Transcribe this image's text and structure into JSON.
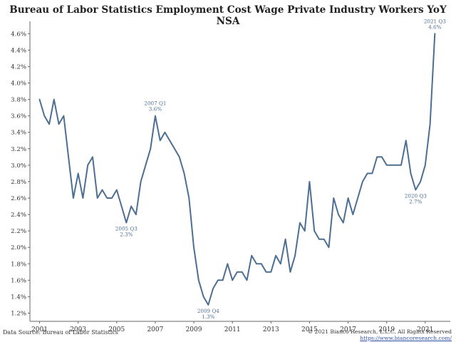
{
  "chart_data": {
    "type": "line",
    "title": "Bureau of Labor Statistics Employment Cost Wage Private Industry Workers YoY NSA",
    "xlabel": "",
    "ylabel": "",
    "x_range": [
      2000.5,
      2022.3
    ],
    "ylim": [
      1.1,
      4.75
    ],
    "y_ticks": [
      1.2,
      1.4,
      1.6,
      1.8,
      2.0,
      2.2,
      2.4,
      2.6,
      2.8,
      3.0,
      3.2,
      3.4,
      3.6,
      3.8,
      4.0,
      4.2,
      4.4,
      4.6
    ],
    "y_tick_labels": [
      "1.2%",
      "1.4%",
      "1.6%",
      "1.8%",
      "2.0%",
      "2.2%",
      "2.4%",
      "2.6%",
      "2.8%",
      "3.0%",
      "3.2%",
      "3.4%",
      "3.6%",
      "3.8%",
      "4.0%",
      "4.2%",
      "4.4%",
      "4.6%"
    ],
    "x_ticks": [
      2001,
      2003,
      2005,
      2007,
      2009,
      2011,
      2013,
      2015,
      2017,
      2019,
      2021
    ],
    "x_tick_labels": [
      "2001",
      "2003",
      "2005",
      "2007",
      "2009",
      "2011",
      "2013",
      "2015",
      "2017",
      "2019",
      "2021"
    ],
    "grid": false,
    "series": [
      {
        "name": "Employment Cost Wage Private Industry Workers YoY NSA",
        "color": "#4d6e93",
        "points": [
          [
            2001.0,
            3.8
          ],
          [
            2001.25,
            3.6
          ],
          [
            2001.5,
            3.5
          ],
          [
            2001.75,
            3.8
          ],
          [
            2002.0,
            3.5
          ],
          [
            2002.25,
            3.6
          ],
          [
            2002.5,
            3.1
          ],
          [
            2002.75,
            2.6
          ],
          [
            2003.0,
            2.9
          ],
          [
            2003.25,
            2.6
          ],
          [
            2003.5,
            3.0
          ],
          [
            2003.75,
            3.1
          ],
          [
            2004.0,
            2.6
          ],
          [
            2004.25,
            2.7
          ],
          [
            2004.5,
            2.6
          ],
          [
            2004.75,
            2.6
          ],
          [
            2005.0,
            2.7
          ],
          [
            2005.25,
            2.5
          ],
          [
            2005.5,
            2.3
          ],
          [
            2005.75,
            2.5
          ],
          [
            2006.0,
            2.4
          ],
          [
            2006.25,
            2.8
          ],
          [
            2006.5,
            3.0
          ],
          [
            2006.75,
            3.2
          ],
          [
            2007.0,
            3.6
          ],
          [
            2007.25,
            3.3
          ],
          [
            2007.5,
            3.4
          ],
          [
            2007.75,
            3.3
          ],
          [
            2008.0,
            3.2
          ],
          [
            2008.25,
            3.1
          ],
          [
            2008.5,
            2.9
          ],
          [
            2008.75,
            2.6
          ],
          [
            2009.0,
            2.0
          ],
          [
            2009.25,
            1.6
          ],
          [
            2009.5,
            1.4
          ],
          [
            2009.75,
            1.3
          ],
          [
            2010.0,
            1.5
          ],
          [
            2010.25,
            1.6
          ],
          [
            2010.5,
            1.6
          ],
          [
            2010.75,
            1.8
          ],
          [
            2011.0,
            1.6
          ],
          [
            2011.25,
            1.7
          ],
          [
            2011.5,
            1.7
          ],
          [
            2011.75,
            1.6
          ],
          [
            2012.0,
            1.9
          ],
          [
            2012.25,
            1.8
          ],
          [
            2012.5,
            1.8
          ],
          [
            2012.75,
            1.7
          ],
          [
            2013.0,
            1.7
          ],
          [
            2013.25,
            1.9
          ],
          [
            2013.5,
            1.8
          ],
          [
            2013.75,
            2.1
          ],
          [
            2014.0,
            1.7
          ],
          [
            2014.25,
            1.9
          ],
          [
            2014.5,
            2.3
          ],
          [
            2014.75,
            2.2
          ],
          [
            2015.0,
            2.8
          ],
          [
            2015.25,
            2.2
          ],
          [
            2015.5,
            2.1
          ],
          [
            2015.75,
            2.1
          ],
          [
            2016.0,
            2.0
          ],
          [
            2016.25,
            2.6
          ],
          [
            2016.5,
            2.4
          ],
          [
            2016.75,
            2.3
          ],
          [
            2017.0,
            2.6
          ],
          [
            2017.25,
            2.4
          ],
          [
            2017.5,
            2.6
          ],
          [
            2017.75,
            2.8
          ],
          [
            2018.0,
            2.9
          ],
          [
            2018.25,
            2.9
          ],
          [
            2018.5,
            3.1
          ],
          [
            2018.75,
            3.1
          ],
          [
            2019.0,
            3.0
          ],
          [
            2019.25,
            3.0
          ],
          [
            2019.5,
            3.0
          ],
          [
            2019.75,
            3.0
          ],
          [
            2020.0,
            3.3
          ],
          [
            2020.25,
            2.9
          ],
          [
            2020.5,
            2.7
          ],
          [
            2020.75,
            2.8
          ],
          [
            2021.0,
            3.0
          ],
          [
            2021.25,
            3.5
          ],
          [
            2021.5,
            4.6
          ]
        ]
      }
    ],
    "annotations": [
      {
        "x": 2005.5,
        "y": 2.3,
        "label": "2005 Q3",
        "value_label": "2.3%",
        "position": "below"
      },
      {
        "x": 2007.0,
        "y": 3.6,
        "label": "2007 Q1",
        "value_label": "3.6%",
        "position": "above"
      },
      {
        "x": 2009.75,
        "y": 1.3,
        "label": "2009 Q4",
        "value_label": "1.3%",
        "position": "below"
      },
      {
        "x": 2020.5,
        "y": 2.7,
        "label": "2020 Q3",
        "value_label": "2.7%",
        "position": "below"
      },
      {
        "x": 2021.5,
        "y": 4.6,
        "label": "2021 Q3",
        "value_label": "4.6%",
        "position": "above"
      }
    ]
  },
  "footer": {
    "source": "Data Source: Bureau of Labor Statistics",
    "copyright": "© 2021 Bianco Research, L.L.C. All Rights Reserved",
    "url": "https://www.biancoresearch.com/"
  }
}
